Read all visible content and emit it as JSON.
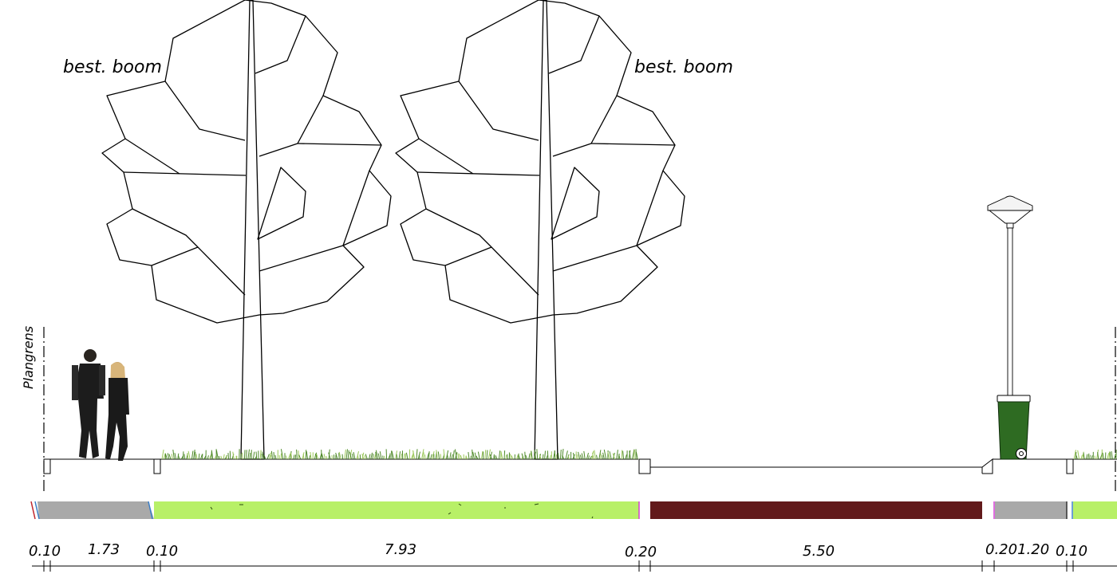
{
  "labels": {
    "tree_left": "best. boom",
    "tree_right": "best. boom",
    "plangrens": "Plangrens"
  },
  "dimensions": [
    "0.10",
    "1.73",
    "0.10",
    "7.93",
    "0.20",
    "5.50",
    "0.201.20",
    "0.10"
  ],
  "colors": {
    "pavement": "#a9a9a9",
    "grass_strip": "#b8f067",
    "road": "#621a1b",
    "bin": "#2e6b22",
    "grass_blade": "#4f8a2a",
    "edge_red": "#c0272d",
    "edge_blue": "#3a7ec7",
    "edge_magenta": "#d63fd6"
  },
  "icons": {
    "people": "pedestrians-couple-icon",
    "bin": "waste-bin-icon",
    "lamp": "street-lamp-icon"
  }
}
